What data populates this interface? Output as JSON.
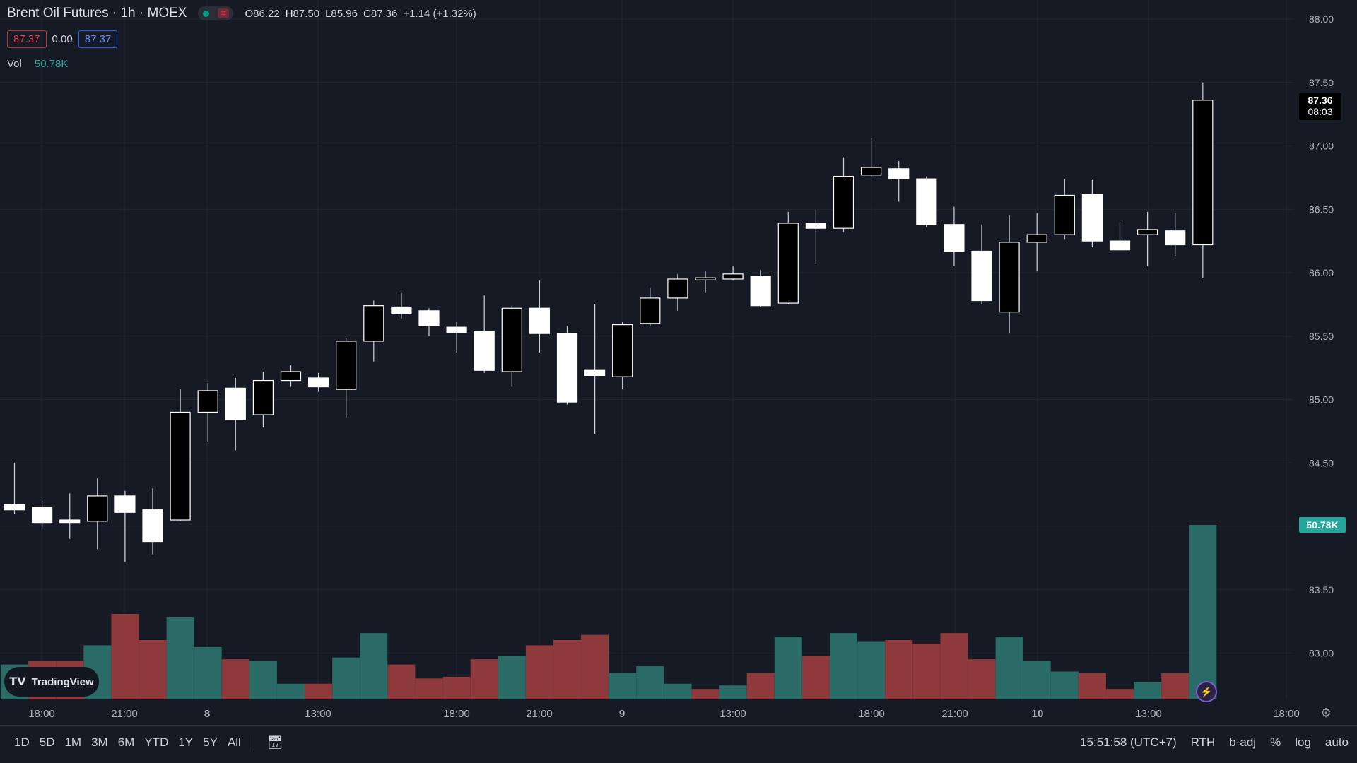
{
  "header": {
    "symbol": "Brent Oil Futures · 1h · MOEX",
    "ohlc": {
      "o_label": "O",
      "o": "86.22",
      "h_label": "H",
      "h": "87.50",
      "l_label": "L",
      "l": "85.96",
      "c_label": "C",
      "c": "87.36",
      "change": "+1.14 (+1.32%)"
    },
    "sell": "87.37",
    "spread": "0.00",
    "buy": "87.37",
    "vol_label": "Vol",
    "vol_value": "50.78K"
  },
  "logo_text": "TradingView",
  "bottom_bar": {
    "timeframes": [
      "1D",
      "5D",
      "1M",
      "3M",
      "6M",
      "YTD",
      "1Y",
      "5Y",
      "All"
    ],
    "time": "15:51:58 (UTC+7)",
    "rth": "RTH",
    "badj": "b-adj",
    "pct": "%",
    "log": "log",
    "auto": "auto"
  },
  "colors": {
    "background": "#161a25",
    "volume_up": "#26a69a",
    "volume_down": "#b2393f",
    "price_tag": "#000000",
    "volume_tag": "#26a69a"
  },
  "chart_data": {
    "type": "candlestick",
    "y_axis": {
      "ticks": [
        "88.00",
        "87.50",
        "87.00",
        "86.50",
        "86.00",
        "85.50",
        "85.00",
        "84.50",
        "83.50",
        "83.00"
      ],
      "range": [
        82.6,
        88.1
      ]
    },
    "x_axis": {
      "ticks": [
        "18:00",
        "21:00",
        "8",
        "13:00",
        "18:00",
        "21:00",
        "9",
        "13:00",
        "18:00",
        "21:00",
        "10",
        "13:00",
        "18:00"
      ]
    },
    "last_price": "87.36",
    "countdown": "08:03",
    "last_volume": "50.78K",
    "candles": [
      {
        "o": 84.17,
        "h": 84.5,
        "l": 84.1,
        "c": 84.13
      },
      {
        "o": 84.15,
        "h": 84.2,
        "l": 83.98,
        "c": 84.03
      },
      {
        "o": 84.05,
        "h": 84.26,
        "l": 83.9,
        "c": 84.03
      },
      {
        "o": 84.04,
        "h": 84.38,
        "l": 83.82,
        "c": 84.24
      },
      {
        "o": 84.24,
        "h": 84.28,
        "l": 83.72,
        "c": 84.11
      },
      {
        "o": 84.13,
        "h": 84.3,
        "l": 83.78,
        "c": 83.88
      },
      {
        "o": 84.05,
        "h": 85.08,
        "l": 84.04,
        "c": 84.9
      },
      {
        "o": 84.9,
        "h": 85.13,
        "l": 84.67,
        "c": 85.07
      },
      {
        "o": 85.09,
        "h": 85.17,
        "l": 84.6,
        "c": 84.84
      },
      {
        "o": 84.88,
        "h": 85.22,
        "l": 84.78,
        "c": 85.15
      },
      {
        "o": 85.15,
        "h": 85.27,
        "l": 85.1,
        "c": 85.22
      },
      {
        "o": 85.17,
        "h": 85.21,
        "l": 85.06,
        "c": 85.1
      },
      {
        "o": 85.08,
        "h": 85.48,
        "l": 84.86,
        "c": 85.46
      },
      {
        "o": 85.46,
        "h": 85.78,
        "l": 85.3,
        "c": 85.74
      },
      {
        "o": 85.73,
        "h": 85.84,
        "l": 85.64,
        "c": 85.68
      },
      {
        "o": 85.7,
        "h": 85.72,
        "l": 85.5,
        "c": 85.58
      },
      {
        "o": 85.57,
        "h": 85.61,
        "l": 85.37,
        "c": 85.53
      },
      {
        "o": 85.54,
        "h": 85.82,
        "l": 85.21,
        "c": 85.23
      },
      {
        "o": 85.22,
        "h": 85.74,
        "l": 85.1,
        "c": 85.72
      },
      {
        "o": 85.72,
        "h": 85.94,
        "l": 85.37,
        "c": 85.52
      },
      {
        "o": 85.52,
        "h": 85.58,
        "l": 84.96,
        "c": 84.98
      },
      {
        "o": 85.23,
        "h": 85.75,
        "l": 84.73,
        "c": 85.19
      },
      {
        "o": 85.18,
        "h": 85.61,
        "l": 85.08,
        "c": 85.59
      },
      {
        "o": 85.6,
        "h": 85.88,
        "l": 85.58,
        "c": 85.8
      },
      {
        "o": 85.8,
        "h": 85.99,
        "l": 85.7,
        "c": 85.95
      },
      {
        "o": 85.95,
        "h": 86.01,
        "l": 85.84,
        "c": 85.96
      },
      {
        "o": 85.95,
        "h": 86.05,
        "l": 85.94,
        "c": 85.99
      },
      {
        "o": 85.97,
        "h": 86.02,
        "l": 85.73,
        "c": 85.74
      },
      {
        "o": 85.76,
        "h": 86.48,
        "l": 85.75,
        "c": 86.39
      },
      {
        "o": 86.39,
        "h": 86.5,
        "l": 86.07,
        "c": 86.35
      },
      {
        "o": 86.35,
        "h": 86.91,
        "l": 86.32,
        "c": 86.76
      },
      {
        "o": 86.77,
        "h": 87.06,
        "l": 86.76,
        "c": 86.83
      },
      {
        "o": 86.82,
        "h": 86.88,
        "l": 86.56,
        "c": 86.74
      },
      {
        "o": 86.74,
        "h": 86.76,
        "l": 86.36,
        "c": 86.38
      },
      {
        "o": 86.38,
        "h": 86.52,
        "l": 86.05,
        "c": 86.17
      },
      {
        "o": 86.17,
        "h": 86.38,
        "l": 85.75,
        "c": 85.78
      },
      {
        "o": 85.69,
        "h": 86.45,
        "l": 85.52,
        "c": 86.24
      },
      {
        "o": 86.24,
        "h": 86.47,
        "l": 86.01,
        "c": 86.3
      },
      {
        "o": 86.3,
        "h": 86.74,
        "l": 86.26,
        "c": 86.61
      },
      {
        "o": 86.62,
        "h": 86.73,
        "l": 86.2,
        "c": 86.25
      },
      {
        "o": 86.25,
        "h": 86.4,
        "l": 86.18,
        "c": 86.18
      },
      {
        "o": 86.3,
        "h": 86.48,
        "l": 86.05,
        "c": 86.34
      },
      {
        "o": 86.33,
        "h": 86.47,
        "l": 86.13,
        "c": 86.22
      },
      {
        "o": 86.22,
        "h": 87.5,
        "l": 85.96,
        "c": 87.36
      }
    ],
    "volume": [
      {
        "v": 0.2,
        "d": "up"
      },
      {
        "v": 0.22,
        "d": "down"
      },
      {
        "v": 0.22,
        "d": "down"
      },
      {
        "v": 0.31,
        "d": "up"
      },
      {
        "v": 0.49,
        "d": "down"
      },
      {
        "v": 0.34,
        "d": "down"
      },
      {
        "v": 0.47,
        "d": "up"
      },
      {
        "v": 0.3,
        "d": "up"
      },
      {
        "v": 0.23,
        "d": "down"
      },
      {
        "v": 0.22,
        "d": "up"
      },
      {
        "v": 0.09,
        "d": "up"
      },
      {
        "v": 0.09,
        "d": "down"
      },
      {
        "v": 0.24,
        "d": "up"
      },
      {
        "v": 0.38,
        "d": "up"
      },
      {
        "v": 0.2,
        "d": "down"
      },
      {
        "v": 0.12,
        "d": "down"
      },
      {
        "v": 0.13,
        "d": "down"
      },
      {
        "v": 0.23,
        "d": "down"
      },
      {
        "v": 0.25,
        "d": "up"
      },
      {
        "v": 0.31,
        "d": "down"
      },
      {
        "v": 0.34,
        "d": "down"
      },
      {
        "v": 0.37,
        "d": "down"
      },
      {
        "v": 0.15,
        "d": "up"
      },
      {
        "v": 0.19,
        "d": "up"
      },
      {
        "v": 0.09,
        "d": "up"
      },
      {
        "v": 0.06,
        "d": "down"
      },
      {
        "v": 0.08,
        "d": "up"
      },
      {
        "v": 0.15,
        "d": "down"
      },
      {
        "v": 0.36,
        "d": "up"
      },
      {
        "v": 0.25,
        "d": "down"
      },
      {
        "v": 0.38,
        "d": "up"
      },
      {
        "v": 0.33,
        "d": "up"
      },
      {
        "v": 0.34,
        "d": "down"
      },
      {
        "v": 0.32,
        "d": "down"
      },
      {
        "v": 0.38,
        "d": "down"
      },
      {
        "v": 0.23,
        "d": "down"
      },
      {
        "v": 0.36,
        "d": "up"
      },
      {
        "v": 0.22,
        "d": "up"
      },
      {
        "v": 0.16,
        "d": "up"
      },
      {
        "v": 0.15,
        "d": "down"
      },
      {
        "v": 0.06,
        "d": "down"
      },
      {
        "v": 0.1,
        "d": "up"
      },
      {
        "v": 0.15,
        "d": "down"
      },
      {
        "v": 1.0,
        "d": "up"
      }
    ]
  }
}
